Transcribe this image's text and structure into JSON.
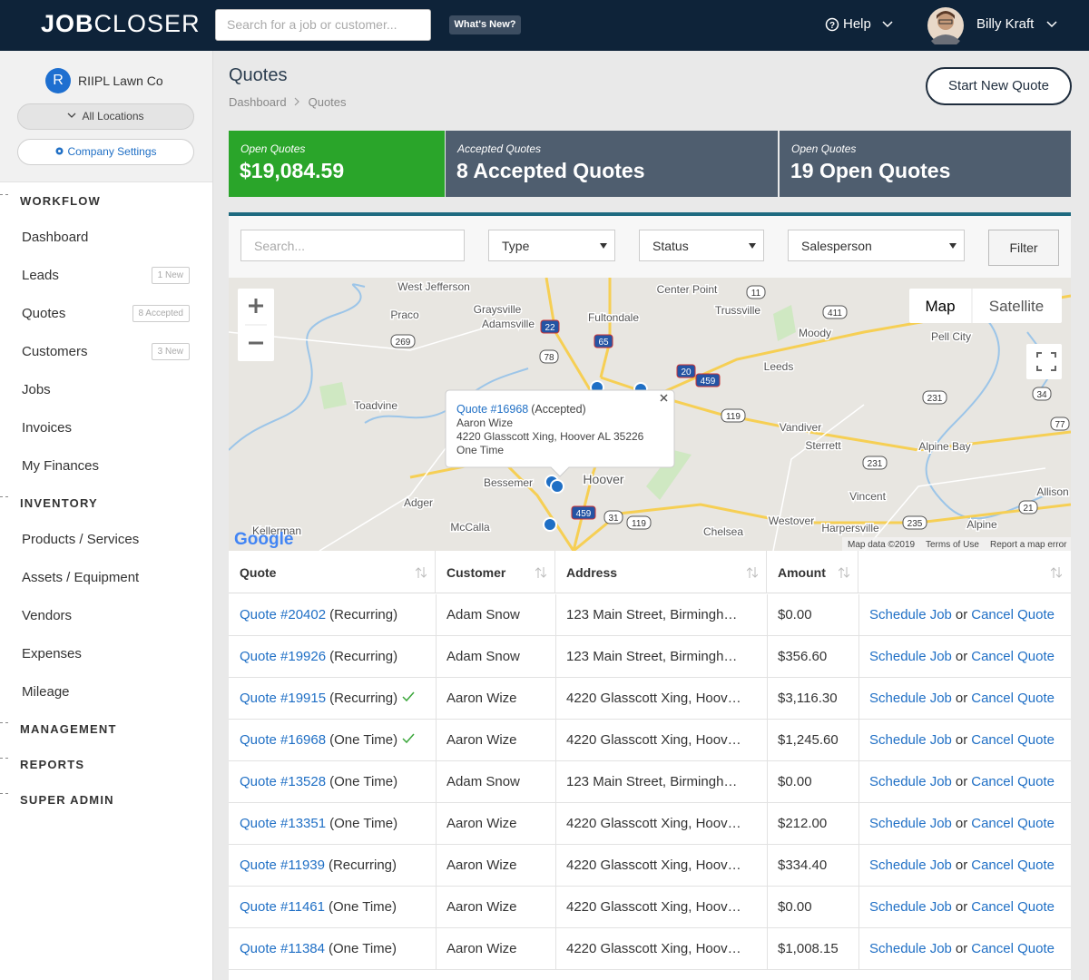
{
  "header": {
    "logo_bold": "JOB",
    "logo_light": "CLOSER",
    "search_placeholder": "Search for a job or customer...",
    "whats_new": "What's New?",
    "help": "Help",
    "user": "Billy Kraft"
  },
  "sidebar": {
    "company_initial": "R",
    "company": "RIIPL Lawn Co",
    "locations": "All Locations",
    "settings": "Company Settings",
    "sections": [
      {
        "title": "WORKFLOW",
        "items": [
          {
            "label": "Dashboard"
          },
          {
            "label": "Leads",
            "badge": "1 New"
          },
          {
            "label": "Quotes",
            "badge": "8 Accepted"
          },
          {
            "label": "Customers",
            "badge": "3 New"
          },
          {
            "label": "Jobs"
          },
          {
            "label": "Invoices"
          },
          {
            "label": "My Finances"
          }
        ]
      },
      {
        "title": "INVENTORY",
        "items": [
          {
            "label": "Products / Services"
          },
          {
            "label": "Assets / Equipment"
          },
          {
            "label": "Vendors"
          },
          {
            "label": "Expenses"
          },
          {
            "label": "Mileage"
          }
        ]
      },
      {
        "title": "MANAGEMENT"
      },
      {
        "title": "REPORTS"
      },
      {
        "title": "SUPER ADMIN"
      }
    ]
  },
  "page": {
    "title": "Quotes",
    "breadcrumb": [
      "Dashboard",
      "Quotes"
    ],
    "new_button": "Start New Quote"
  },
  "stats": [
    {
      "label": "Open Quotes",
      "value": "$19,084.59",
      "color": "#2aa52a"
    },
    {
      "label": "Accepted Quotes",
      "value": "8 Accepted Quotes",
      "color": "#4f5e6f"
    },
    {
      "label": "Open Quotes",
      "value": "19 Open Quotes",
      "color": "#4f5e6f"
    }
  ],
  "filters": {
    "search": "Search...",
    "type": "Type",
    "status": "Status",
    "salesperson": "Salesperson",
    "button": "Filter"
  },
  "map": {
    "map_button": "Map",
    "satellite_button": "Satellite",
    "logo": "Google",
    "footer": [
      "Map data ©2019",
      "Terms of Use",
      "Report a map error"
    ],
    "places": [
      "West Jefferson",
      "Center Point",
      "Graysville",
      "Trussville",
      "Praco",
      "Adamsville",
      "Fultondale",
      "Moody",
      "Pell City",
      "Leeds",
      "Toadvine",
      "Vandiver",
      "Sterrett",
      "Alpine Bay",
      "Bessemer",
      "Hoover",
      "Adger",
      "Vincent",
      "Allison",
      "McCalla",
      "Westover",
      "Harpersville",
      "Alpine",
      "Chelsea",
      "Kellerman"
    ],
    "shields": [
      {
        "label": "11"
      },
      {
        "label": "411"
      },
      {
        "label": "269"
      },
      {
        "label": "22",
        "interstate": true
      },
      {
        "label": "65",
        "interstate": true
      },
      {
        "label": "78"
      },
      {
        "label": "20",
        "interstate": true
      },
      {
        "label": "459",
        "interstate": true
      },
      {
        "label": "119"
      },
      {
        "label": "231"
      },
      {
        "label": "34"
      },
      {
        "label": "77"
      },
      {
        "label": "231"
      },
      {
        "label": "21"
      },
      {
        "label": "235"
      },
      {
        "label": "31"
      },
      {
        "label": "119"
      },
      {
        "label": "459",
        "interstate": true
      }
    ],
    "popup": {
      "quote": "Quote #16968",
      "status": "(Accepted)",
      "customer": "Aaron Wize",
      "address": "4220 Glasscott Xing, Hoover AL 35226",
      "frequency": "One Time"
    }
  },
  "table": {
    "columns": [
      "Quote",
      "Customer",
      "Address",
      "Amount"
    ],
    "actions": {
      "schedule": "Schedule Job",
      "or": "or",
      "cancel": "Cancel Quote"
    },
    "rows": [
      {
        "quote": "Quote #20402",
        "type": "(Recurring)",
        "accepted": false,
        "customer": "Adam Snow",
        "address": "123 Main Street, Birmingh…",
        "amount": "$0.00"
      },
      {
        "quote": "Quote #19926",
        "type": "(Recurring)",
        "accepted": false,
        "customer": "Adam Snow",
        "address": "123 Main Street, Birmingh…",
        "amount": "$356.60"
      },
      {
        "quote": "Quote #19915",
        "type": "(Recurring)",
        "accepted": true,
        "customer": "Aaron Wize",
        "address": "4220 Glasscott Xing, Hoov…",
        "amount": "$3,116.30"
      },
      {
        "quote": "Quote #16968",
        "type": "(One Time)",
        "accepted": true,
        "customer": "Aaron Wize",
        "address": "4220 Glasscott Xing, Hoov…",
        "amount": "$1,245.60"
      },
      {
        "quote": "Quote #13528",
        "type": "(One Time)",
        "accepted": false,
        "customer": "Adam Snow",
        "address": "123 Main Street, Birmingh…",
        "amount": "$0.00"
      },
      {
        "quote": "Quote #13351",
        "type": "(One Time)",
        "accepted": false,
        "customer": "Aaron Wize",
        "address": "4220 Glasscott Xing, Hoov…",
        "amount": "$212.00"
      },
      {
        "quote": "Quote #11939",
        "type": "(Recurring)",
        "accepted": false,
        "customer": "Aaron Wize",
        "address": "4220 Glasscott Xing, Hoov…",
        "amount": "$334.40"
      },
      {
        "quote": "Quote #11461",
        "type": "(One Time)",
        "accepted": false,
        "customer": "Aaron Wize",
        "address": "4220 Glasscott Xing, Hoov…",
        "amount": "$0.00"
      },
      {
        "quote": "Quote #11384",
        "type": "(One Time)",
        "accepted": false,
        "customer": "Aaron Wize",
        "address": "4220 Glasscott Xing, Hoov…",
        "amount": "$1,008.15"
      }
    ]
  }
}
